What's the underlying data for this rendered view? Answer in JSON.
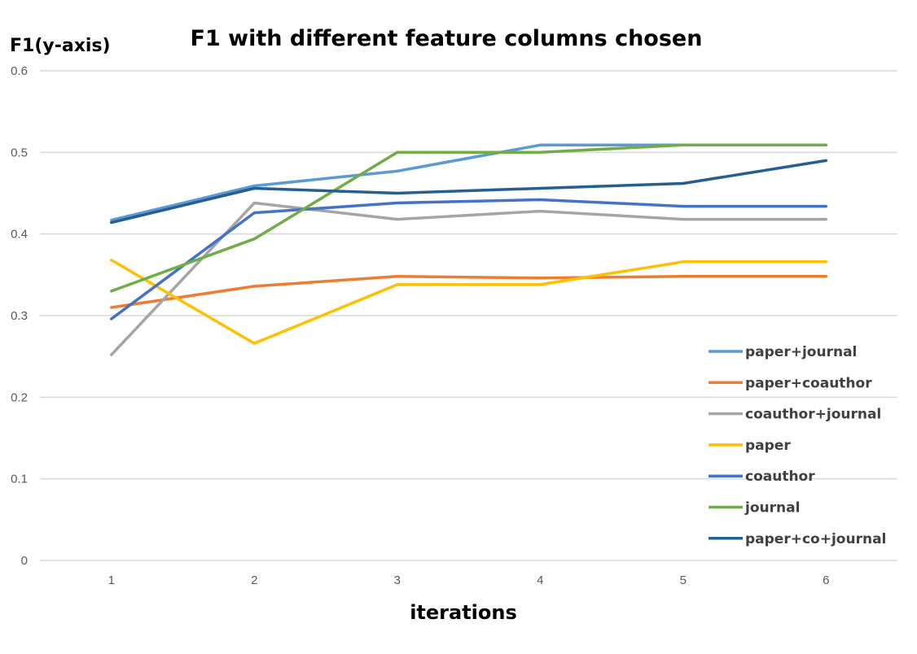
{
  "chart_data": {
    "type": "line",
    "title": "F1 with different feature columns chosen",
    "ylabel": "F1(y-axis)",
    "xlabel": "iterations",
    "x": [
      1,
      2,
      3,
      4,
      5,
      6
    ],
    "x_tick_labels": [
      "1",
      "2",
      "3",
      "4",
      "5",
      "6"
    ],
    "ylim": [
      0,
      0.6
    ],
    "y_ticks": [
      0,
      0.1,
      0.2,
      0.3,
      0.4,
      0.5,
      0.6
    ],
    "y_tick_labels": [
      "0",
      "0.1",
      "0.2",
      "0.3",
      "0.4",
      "0.5",
      "0.6"
    ],
    "grid": "horizontal",
    "legend_position": "right",
    "series": [
      {
        "name": "paper+journal",
        "color": "#5B9BD5",
        "values": [
          0.417,
          0.459,
          0.477,
          0.509,
          0.509,
          0.509
        ]
      },
      {
        "name": "paper+coauthor",
        "color": "#ED7D31",
        "values": [
          0.31,
          0.336,
          0.348,
          0.346,
          0.348,
          0.348
        ]
      },
      {
        "name": "coauthor+journal",
        "color": "#A5A5A5",
        "values": [
          0.252,
          0.438,
          0.418,
          0.428,
          0.418,
          0.418
        ]
      },
      {
        "name": "paper",
        "color": "#FFC000",
        "values": [
          0.368,
          0.266,
          0.338,
          0.338,
          0.366,
          0.366
        ]
      },
      {
        "name": "coauthor",
        "color": "#4472C4",
        "values": [
          0.296,
          0.426,
          0.438,
          0.442,
          0.434,
          0.434
        ]
      },
      {
        "name": "journal",
        "color": "#70AD47",
        "values": [
          0.33,
          0.394,
          0.5,
          0.5,
          0.509,
          0.509
        ]
      },
      {
        "name": "paper+co+journal",
        "color": "#255E91",
        "values": [
          0.414,
          0.456,
          0.45,
          0.456,
          0.462,
          0.49
        ]
      }
    ]
  }
}
